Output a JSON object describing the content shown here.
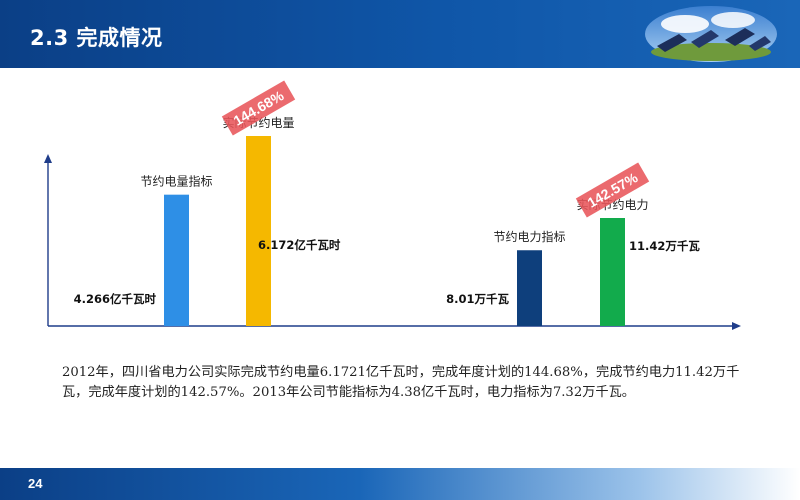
{
  "header": {
    "title": "2.3 完成情况"
  },
  "chart_data": {
    "type": "bar",
    "groups": [
      {
        "name": "节约电量",
        "bars": [
          {
            "label": "节约电量指标",
            "value_text": "4.266亿千瓦时",
            "value": 4.266,
            "color": "#2e8fe6"
          },
          {
            "label": "实际节约电量",
            "value_text": "6.172亿千瓦时",
            "value": 6.172,
            "color": "#f5b800",
            "badge": "144.68%"
          }
        ]
      },
      {
        "name": "节约电力",
        "bars": [
          {
            "label": "节约电力指标",
            "value_text": "8.01万千瓦",
            "value": 8.01,
            "color": "#0e3f7c"
          },
          {
            "label": "实际节约电力",
            "value_text": "11.42万千瓦",
            "value": 11.42,
            "color": "#12ab4c",
            "badge": "142.57%"
          }
        ]
      }
    ],
    "badge_color": "#e8555a",
    "axis_color": "#1f3d8a"
  },
  "description": "2012年，四川省电力公司实际完成节约电量6.1721亿千瓦时，完成年度计划的144.68%，完成节约电力11.42万千瓦，完成年度计划的142.57%。2013年公司节能指标为4.38亿千瓦时，电力指标为7.32万千瓦。",
  "footer": {
    "page_number": "24"
  }
}
